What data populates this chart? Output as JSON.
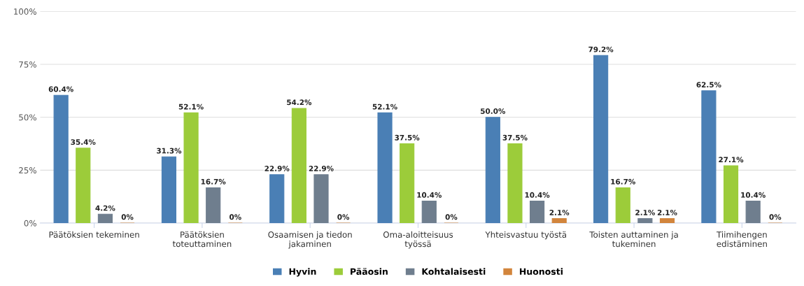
{
  "chart_data": {
    "type": "bar",
    "categories": [
      "Päätöksien tekeminen",
      "Päätöksien toteuttaminen",
      "Osaamisen ja tiedon jakaminen",
      "Oma-aloitteisuus työssä",
      "Yhteisvastuu työstä",
      "Toisten auttaminen ja tukeminen",
      "Tiimihengen edistäminen"
    ],
    "series": [
      {
        "name": "Hyvin",
        "color": "#4a7fb5",
        "values": [
          60.4,
          31.3,
          22.9,
          52.1,
          50.0,
          79.2,
          62.5
        ],
        "value_labels": [
          "60.4%",
          "31.3%",
          "22.9%",
          "52.1%",
          "50.0%",
          "79.2%",
          "62.5%"
        ]
      },
      {
        "name": "Pääosin",
        "color": "#9ccc3a",
        "values": [
          35.4,
          52.1,
          54.2,
          37.5,
          37.5,
          16.7,
          27.1
        ],
        "value_labels": [
          "35.4%",
          "52.1%",
          "54.2%",
          "37.5%",
          "37.5%",
          "16.7%",
          "27.1%"
        ]
      },
      {
        "name": "Kohtalaisesti",
        "color": "#6f7e8e",
        "values": [
          4.2,
          16.7,
          22.9,
          10.4,
          10.4,
          2.1,
          10.4
        ],
        "value_labels": [
          "4.2%",
          "16.7%",
          "22.9%",
          "10.4%",
          "10.4%",
          "2.1%",
          "10.4%"
        ]
      },
      {
        "name": "Huonosti",
        "color": "#d2853c",
        "values": [
          0,
          0,
          0,
          0,
          2.1,
          2.1,
          0
        ],
        "value_labels": [
          "0%",
          "0%",
          "0%",
          "0%",
          "2.1%",
          "2.1%",
          "0%"
        ]
      }
    ],
    "ylim": [
      0,
      100
    ],
    "yticks": [
      {
        "value": 0,
        "label": "0%"
      },
      {
        "value": 25,
        "label": "25%"
      },
      {
        "value": 50,
        "label": "50%"
      },
      {
        "value": 75,
        "label": "75%"
      },
      {
        "value": 100,
        "label": "100%"
      }
    ],
    "grid": "y",
    "legend": "bottom"
  }
}
